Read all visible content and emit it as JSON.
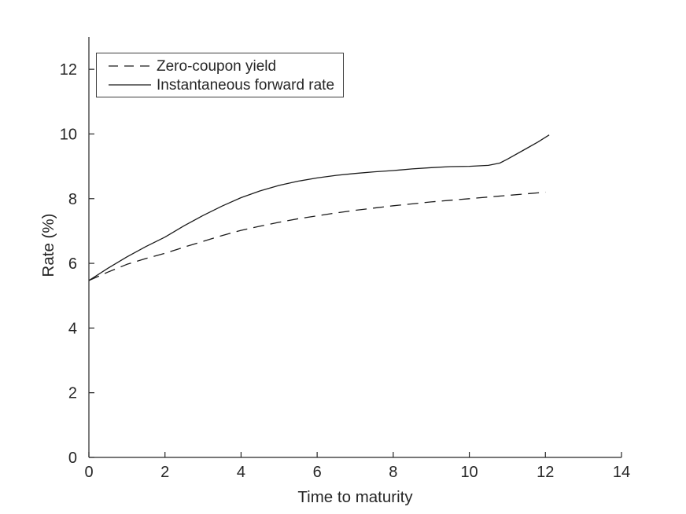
{
  "figure": {
    "background": "#ffffff",
    "text_color": "#262626",
    "axis_color": "#262626",
    "line_color": "#1a1a1a"
  },
  "chart_data": {
    "type": "line",
    "title": "",
    "xlabel": "Time to maturity",
    "ylabel": "Rate (%)",
    "xlim": [
      0,
      14
    ],
    "ylim": [
      0,
      13
    ],
    "xticks": [
      0,
      2,
      4,
      6,
      8,
      10,
      12,
      14
    ],
    "yticks": [
      0,
      2,
      4,
      6,
      8,
      10,
      12
    ],
    "grid": false,
    "legend": {
      "position": "top-left-inside",
      "border": true
    },
    "series": [
      {
        "name": "Zero-coupon yield",
        "line_style": "dashed",
        "color": "#1a1a1a",
        "points": [
          [
            0,
            5.47
          ],
          [
            0.5,
            5.73
          ],
          [
            1,
            5.97
          ],
          [
            1.5,
            6.15
          ],
          [
            2,
            6.31
          ],
          [
            2.5,
            6.5
          ],
          [
            3,
            6.68
          ],
          [
            3.5,
            6.86
          ],
          [
            4,
            7.02
          ],
          [
            4.5,
            7.15
          ],
          [
            5,
            7.27
          ],
          [
            5.5,
            7.38
          ],
          [
            6,
            7.47
          ],
          [
            6.5,
            7.56
          ],
          [
            7,
            7.64
          ],
          [
            7.5,
            7.71
          ],
          [
            8,
            7.78
          ],
          [
            8.5,
            7.84
          ],
          [
            9,
            7.9
          ],
          [
            9.5,
            7.95
          ],
          [
            10,
            8.0
          ],
          [
            10.5,
            8.05
          ],
          [
            11,
            8.1
          ],
          [
            11.5,
            8.15
          ],
          [
            12,
            8.2
          ]
        ]
      },
      {
        "name": "Instantaneous forward rate",
        "line_style": "solid",
        "color": "#1a1a1a",
        "points": [
          [
            0,
            5.47
          ],
          [
            0.5,
            5.85
          ],
          [
            1,
            6.2
          ],
          [
            1.5,
            6.52
          ],
          [
            2,
            6.81
          ],
          [
            2.5,
            7.16
          ],
          [
            3,
            7.48
          ],
          [
            3.5,
            7.77
          ],
          [
            4,
            8.03
          ],
          [
            4.5,
            8.24
          ],
          [
            5,
            8.41
          ],
          [
            5.5,
            8.54
          ],
          [
            6,
            8.64
          ],
          [
            6.5,
            8.72
          ],
          [
            7,
            8.78
          ],
          [
            7.5,
            8.83
          ],
          [
            8,
            8.87
          ],
          [
            8.5,
            8.92
          ],
          [
            9,
            8.96
          ],
          [
            9.5,
            8.99
          ],
          [
            10,
            9.0
          ],
          [
            10.5,
            9.03
          ],
          [
            10.8,
            9.1
          ],
          [
            11,
            9.22
          ],
          [
            11.5,
            9.55
          ],
          [
            11.8,
            9.75
          ],
          [
            12.1,
            9.97
          ]
        ]
      }
    ]
  }
}
